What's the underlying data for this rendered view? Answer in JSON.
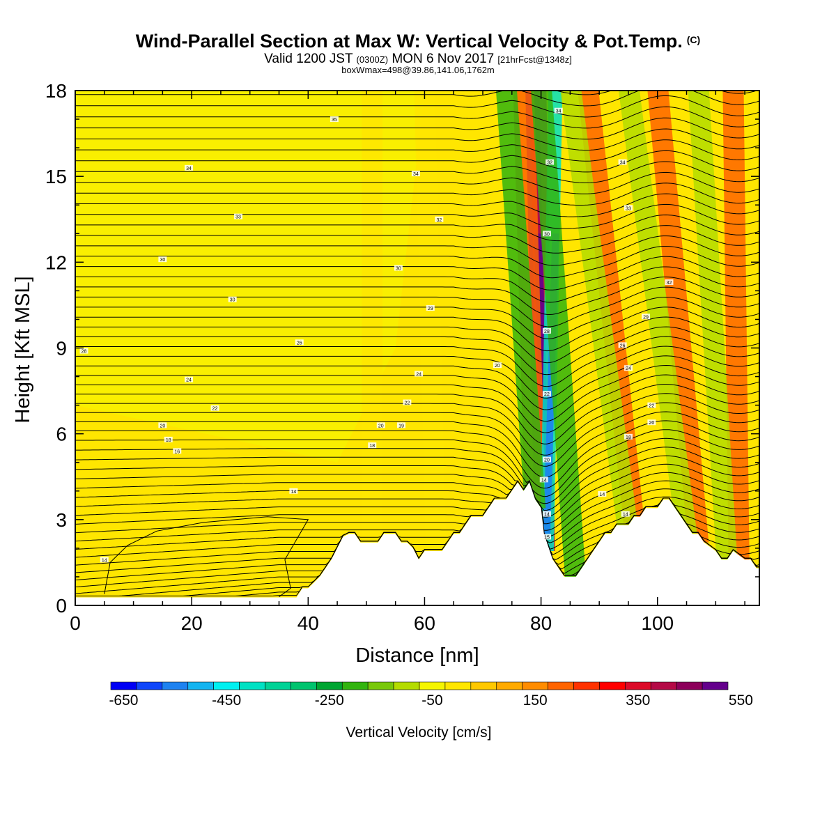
{
  "header": {
    "title": "Wind-Parallel Section at Max W: Vertical Velocity & Pot.Temp.",
    "title_mark": "(C)",
    "valid_prefix": "Valid 1200 JST",
    "valid_utc": "(0300Z)",
    "valid_date": "MON 6 Nov 2017",
    "valid_fcst": "[21hrFcst@1348z]",
    "box_line": "boxWmax=498@39.86,141.06,1762m"
  },
  "chart_data": {
    "type": "heatmap",
    "xlabel": "Distance [nm]",
    "ylabel": "Height [Kft MSL]",
    "xlim": [
      0,
      117.5
    ],
    "ylim": [
      0,
      18
    ],
    "x_ticks": [
      "0",
      "20",
      "40",
      "60",
      "80",
      "100"
    ],
    "y_ticks": [
      "0",
      "3",
      "6",
      "9",
      "12",
      "15",
      "18"
    ],
    "colorbar": {
      "label": "Vertical Velocity [cm/s]",
      "tick_labels": [
        "-650",
        "-450",
        "-250",
        "-50",
        "150",
        "350",
        "550"
      ],
      "colors": [
        "#0000f5",
        "#0f46fa",
        "#1e82f0",
        "#14b4f0",
        "#00f0f0",
        "#00e1c3",
        "#00d296",
        "#00c36e",
        "#00a532",
        "#32b40f",
        "#78c80a",
        "#b4dc00",
        "#f5f500",
        "#ffe600",
        "#ffc800",
        "#ffaa00",
        "#ff8c00",
        "#ff6400",
        "#ff3200",
        "#ff0000",
        "#dc0a28",
        "#b40a46",
        "#8c005a",
        "#64008c"
      ]
    },
    "terrain": [
      [
        0,
        0.28
      ],
      [
        35,
        0.28
      ],
      [
        37,
        0.28
      ],
      [
        38,
        0.28
      ],
      [
        39,
        0.6
      ],
      [
        40,
        0.6
      ],
      [
        41,
        0.8
      ],
      [
        42,
        1.0
      ],
      [
        43,
        1.3
      ],
      [
        44,
        1.6
      ],
      [
        45,
        2.0
      ],
      [
        46,
        2.4
      ],
      [
        47,
        2.5
      ],
      [
        48,
        2.5
      ],
      [
        49,
        2.2
      ],
      [
        52,
        2.2
      ],
      [
        53,
        2.5
      ],
      [
        55,
        2.5
      ],
      [
        56,
        2.2
      ],
      [
        57,
        2.2
      ],
      [
        58,
        2.0
      ],
      [
        59,
        1.6
      ],
      [
        60,
        1.9
      ],
      [
        63,
        1.9
      ],
      [
        64,
        2.2
      ],
      [
        65,
        2.5
      ],
      [
        66,
        2.5
      ],
      [
        67,
        2.8
      ],
      [
        68,
        3.1
      ],
      [
        70,
        3.1
      ],
      [
        71,
        3.4
      ],
      [
        72,
        3.7
      ],
      [
        74,
        3.7
      ],
      [
        75,
        4.0
      ],
      [
        76,
        4.3
      ],
      [
        77,
        4.0
      ],
      [
        78,
        4.3
      ],
      [
        79,
        3.7
      ],
      [
        80,
        3.4
      ],
      [
        80.5,
        2.5
      ],
      [
        81,
        2.2
      ],
      [
        82,
        1.6
      ],
      [
        83,
        1.3
      ],
      [
        84,
        1.0
      ],
      [
        86,
        1.0
      ],
      [
        87,
        1.3
      ],
      [
        88,
        1.6
      ],
      [
        89,
        1.9
      ],
      [
        90,
        2.2
      ],
      [
        91,
        2.5
      ],
      [
        92,
        2.5
      ],
      [
        93,
        2.8
      ],
      [
        95,
        2.8
      ],
      [
        96,
        3.1
      ],
      [
        97,
        3.1
      ],
      [
        98,
        3.4
      ],
      [
        100,
        3.4
      ],
      [
        101,
        3.7
      ],
      [
        102,
        3.7
      ],
      [
        103,
        3.4
      ],
      [
        104,
        3.1
      ],
      [
        105,
        2.8
      ],
      [
        106,
        2.5
      ],
      [
        107,
        2.5
      ],
      [
        108,
        2.2
      ],
      [
        110,
        1.9
      ],
      [
        111,
        1.6
      ],
      [
        112,
        1.6
      ],
      [
        113,
        1.9
      ],
      [
        115,
        1.6
      ],
      [
        116,
        1.6
      ],
      [
        117,
        1.3
      ],
      [
        117.5,
        1.3
      ]
    ],
    "updraft_bands": [
      {
        "x_base": 80,
        "x_top": 78.5,
        "w_cm_s": 550
      },
      {
        "x_base": 81,
        "x_top": 79.5,
        "w_cm_s": 350
      },
      {
        "x_base": 79,
        "x_top": 77,
        "w_cm_s": 150
      },
      {
        "x_base": 96,
        "x_top": 88,
        "w_cm_s": 150
      },
      {
        "x_base": 107,
        "x_top": 100,
        "w_cm_s": 150
      },
      {
        "x_base": 114,
        "x_top": 113,
        "w_cm_s": 150
      }
    ],
    "downdraft_bands": [
      {
        "x_base": 81,
        "x_top": 82.5,
        "w_cm_s": -450
      },
      {
        "x_base": 86,
        "x_top": 80,
        "w_cm_s": -250
      },
      {
        "x_base": 79,
        "x_top": 74,
        "w_cm_s": -250
      },
      {
        "x_base": 95,
        "x_top": 85,
        "w_cm_s": -150
      },
      {
        "x_base": 105,
        "x_top": 95,
        "w_cm_s": -150
      },
      {
        "x_base": 112,
        "x_top": 107,
        "w_cm_s": -150
      },
      {
        "x_base": 62,
        "x_top": 60,
        "w_cm_s": -50
      },
      {
        "x_base": 51,
        "x_top": 51,
        "w_cm_s": -50
      }
    ],
    "isentrope_labels": [
      {
        "x": 44.5,
        "y": 17.0,
        "text": "35"
      },
      {
        "x": 19.5,
        "y": 15.3,
        "text": "34"
      },
      {
        "x": 58.5,
        "y": 15.1,
        "text": "34"
      },
      {
        "x": 28,
        "y": 13.6,
        "text": "33"
      },
      {
        "x": 62.5,
        "y": 13.5,
        "text": "32"
      },
      {
        "x": 15,
        "y": 12.1,
        "text": "30"
      },
      {
        "x": 55.5,
        "y": 11.8,
        "text": "30"
      },
      {
        "x": 27,
        "y": 10.7,
        "text": "30"
      },
      {
        "x": 61,
        "y": 10.4,
        "text": "29"
      },
      {
        "x": 1.5,
        "y": 8.9,
        "text": "28"
      },
      {
        "x": 38.5,
        "y": 9.2,
        "text": "26"
      },
      {
        "x": 19.5,
        "y": 7.9,
        "text": "24"
      },
      {
        "x": 59,
        "y": 8.1,
        "text": "24"
      },
      {
        "x": 24,
        "y": 6.9,
        "text": "22"
      },
      {
        "x": 57,
        "y": 7.1,
        "text": "22"
      },
      {
        "x": 15,
        "y": 6.3,
        "text": "20"
      },
      {
        "x": 52.5,
        "y": 6.3,
        "text": "20"
      },
      {
        "x": 56,
        "y": 6.3,
        "text": "19"
      },
      {
        "x": 16,
        "y": 5.8,
        "text": "18"
      },
      {
        "x": 51,
        "y": 5.6,
        "text": "18"
      },
      {
        "x": 17.5,
        "y": 5.4,
        "text": "16"
      },
      {
        "x": 37.5,
        "y": 4.0,
        "text": "14"
      },
      {
        "x": 5,
        "y": 1.6,
        "text": "14"
      },
      {
        "x": 83,
        "y": 17.3,
        "text": "34"
      },
      {
        "x": 81.5,
        "y": 15.5,
        "text": "32"
      },
      {
        "x": 81,
        "y": 13.0,
        "text": "30"
      },
      {
        "x": 81,
        "y": 9.6,
        "text": "28"
      },
      {
        "x": 81,
        "y": 7.4,
        "text": "22"
      },
      {
        "x": 81,
        "y": 5.1,
        "text": "20"
      },
      {
        "x": 80.5,
        "y": 4.4,
        "text": "14"
      },
      {
        "x": 81,
        "y": 3.2,
        "text": "14"
      },
      {
        "x": 81,
        "y": 2.4,
        "text": "15"
      },
      {
        "x": 94,
        "y": 15.5,
        "text": "34"
      },
      {
        "x": 95,
        "y": 13.9,
        "text": "33"
      },
      {
        "x": 102,
        "y": 11.3,
        "text": "32"
      },
      {
        "x": 98,
        "y": 10.1,
        "text": "29"
      },
      {
        "x": 94,
        "y": 9.1,
        "text": "26"
      },
      {
        "x": 95,
        "y": 8.3,
        "text": "24"
      },
      {
        "x": 99,
        "y": 7.0,
        "text": "22"
      },
      {
        "x": 99,
        "y": 6.4,
        "text": "20"
      },
      {
        "x": 95,
        "y": 5.9,
        "text": "18"
      },
      {
        "x": 90.5,
        "y": 3.9,
        "text": "14"
      },
      {
        "x": 94.5,
        "y": 3.2,
        "text": "14"
      },
      {
        "x": 72.5,
        "y": 8.4,
        "text": "20"
      }
    ]
  }
}
